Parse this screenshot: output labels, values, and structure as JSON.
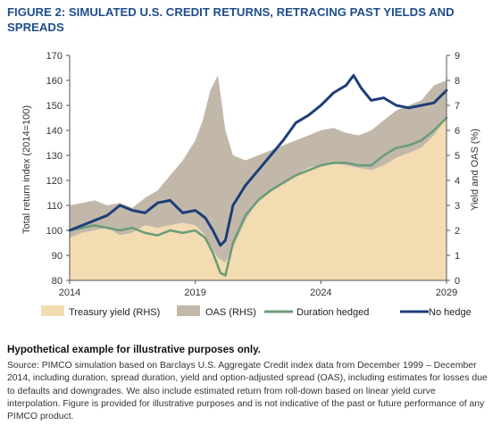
{
  "title": "FIGURE 2: SIMULATED U.S. CREDIT RETURNS, RETRACING PAST YIELDS AND SPREADS",
  "note": "Hypothetical example for illustrative purposes only.",
  "source": "Source: PIMCO simulation based on Barclays U.S. Aggregate Credit index data from December 1999 – December 2014, including duration, spread duration, yield and option-adjusted spread (OAS), including estimates for losses due to defaults and downgrades. We also include estimated return from roll-down based on linear yield curve interpolation. Figure is provided for illustrative purposes and is not indicative of the past or future performance of any PIMCO product.",
  "colors": {
    "treasury": "#f3dcb2",
    "oas": "#c2b8aa",
    "duration_hedged": "#6d9c7a",
    "no_hedge": "#1d3e78",
    "title": "#1f4e8c"
  },
  "chart_data": {
    "type": "area",
    "xlabel": "",
    "ylabel": "Total return index (2014=100)",
    "y2label": "Yield and OAS (%)",
    "xlim": [
      2014,
      2029
    ],
    "ylim": [
      80,
      170
    ],
    "y2lim": [
      0,
      9
    ],
    "x_ticks": [
      2014,
      2019,
      2024,
      2029
    ],
    "y_ticks": [
      80,
      90,
      100,
      110,
      120,
      130,
      140,
      150,
      160,
      170
    ],
    "y2_ticks": [
      0,
      1,
      2,
      3,
      4,
      5,
      6,
      7,
      8,
      9
    ],
    "grid": false,
    "legend": "bottom",
    "series": [
      {
        "name": "Treasury yield (RHS)",
        "kind": "area",
        "axis": "right",
        "x": [
          2014,
          2014.5,
          2015,
          2015.5,
          2016,
          2016.5,
          2017,
          2017.5,
          2018,
          2018.5,
          2019,
          2019.3,
          2019.6,
          2019.9,
          2020.2,
          2020.5,
          2021,
          2021.5,
          2022,
          2022.5,
          2023,
          2023.5,
          2024,
          2024.5,
          2025,
          2025.5,
          2026,
          2026.5,
          2027,
          2027.5,
          2028,
          2028.5,
          2029
        ],
        "values": [
          1.7,
          1.9,
          2.0,
          2.1,
          1.8,
          1.9,
          2.2,
          2.1,
          2.2,
          2.3,
          2.2,
          1.9,
          1.4,
          0.9,
          0.7,
          1.3,
          2.4,
          3.2,
          3.6,
          3.9,
          4.2,
          4.5,
          4.6,
          4.7,
          4.6,
          4.5,
          4.4,
          4.6,
          4.9,
          5.1,
          5.3,
          5.8,
          6.5
        ]
      },
      {
        "name": "OAS (RHS)",
        "kind": "band",
        "axis": "right",
        "x": [
          2014,
          2014.5,
          2015,
          2015.5,
          2016,
          2016.5,
          2017,
          2017.5,
          2018,
          2018.5,
          2019,
          2019.3,
          2019.6,
          2019.9,
          2020.2,
          2020.5,
          2021,
          2021.5,
          2022,
          2022.5,
          2023,
          2023.5,
          2024,
          2024.5,
          2025,
          2025.5,
          2026,
          2026.5,
          2027,
          2027.5,
          2028,
          2028.5,
          2029
        ],
        "values": [
          3.0,
          3.1,
          3.2,
          3.0,
          3.1,
          2.9,
          3.3,
          3.6,
          4.2,
          4.8,
          5.6,
          6.4,
          7.6,
          8.2,
          6.0,
          5.0,
          4.8,
          5.0,
          5.2,
          5.4,
          5.6,
          5.8,
          6.0,
          6.1,
          5.9,
          5.8,
          6.0,
          6.4,
          6.8,
          7.0,
          7.2,
          7.8,
          8.0
        ]
      },
      {
        "name": "Duration hedged",
        "kind": "line",
        "axis": "left",
        "x": [
          2014,
          2014.5,
          2015,
          2015.5,
          2016,
          2016.5,
          2017,
          2017.5,
          2018,
          2018.5,
          2019,
          2019.4,
          2019.7,
          2020.0,
          2020.2,
          2020.5,
          2021,
          2021.5,
          2022,
          2022.5,
          2023,
          2023.5,
          2024,
          2024.5,
          2025,
          2025.5,
          2026,
          2026.5,
          2027,
          2027.5,
          2028,
          2028.5,
          2029
        ],
        "values": [
          100,
          101,
          102,
          101,
          100,
          101,
          99,
          98,
          100,
          99,
          100,
          97,
          91,
          83,
          82,
          95,
          106,
          112,
          116,
          119,
          122,
          124,
          126,
          127,
          127,
          126,
          126,
          130,
          133,
          134,
          136,
          140,
          145
        ]
      },
      {
        "name": "No hedge",
        "kind": "line",
        "axis": "left",
        "x": [
          2014,
          2014.5,
          2015,
          2015.5,
          2016,
          2016.5,
          2017,
          2017.5,
          2018,
          2018.5,
          2019,
          2019.4,
          2019.7,
          2020.0,
          2020.2,
          2020.5,
          2021,
          2021.5,
          2022,
          2022.5,
          2023,
          2023.5,
          2024,
          2024.5,
          2025,
          2025.3,
          2025.6,
          2026,
          2026.5,
          2027,
          2027.5,
          2028,
          2028.5,
          2029
        ],
        "values": [
          100,
          102,
          104,
          106,
          110,
          108,
          107,
          111,
          112,
          107,
          108,
          105,
          100,
          94,
          96,
          110,
          118,
          124,
          130,
          136,
          143,
          146,
          150,
          155,
          158,
          162,
          157,
          152,
          153,
          150,
          149,
          150,
          151,
          156
        ]
      }
    ]
  }
}
